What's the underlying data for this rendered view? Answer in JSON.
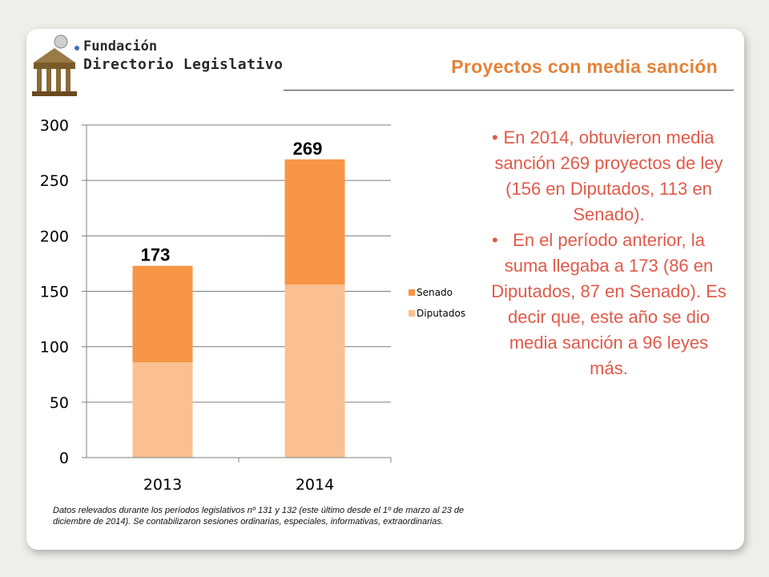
{
  "brand": {
    "line1": "Fundación",
    "line2": "Directorio Legislativo"
  },
  "slide": {
    "title": "Proyectos con media sanción"
  },
  "bullets": [
    "En 2014, obtuvieron media sanción 269 proyectos de ley (156 en Diputados, 113 en Senado).",
    "En el período anterior, la suma llegaba a 173 (86 en Diputados, 87 en Senado). Es decir que, este año se dio media sanción a 96 leyes más."
  ],
  "footnote": "Datos relevados durante los períodos legislativos nº  131 y 132 (este último desde el 1º de marzo al 23 de diciembre de 2014). Se contabilizaron sesiones ordinarias, especiales, informativas, extraordinarias.",
  "colors": {
    "title": "#e4833a",
    "bullet_text": "#e05a4a",
    "senado": "#f79646",
    "diputados": "#fac090"
  },
  "chart_data": {
    "type": "bar",
    "stacked": true,
    "categories": [
      "2013",
      "2014"
    ],
    "series": [
      {
        "name": "Diputados",
        "values": [
          86,
          156
        ],
        "color": "#fac090"
      },
      {
        "name": "Senado",
        "values": [
          87,
          113
        ],
        "color": "#f79646"
      }
    ],
    "totals": [
      "173",
      "269"
    ],
    "ylim": [
      0,
      300
    ],
    "yticks": [
      "0",
      "50",
      "100",
      "150",
      "200",
      "250",
      "300"
    ],
    "grid": true,
    "legend": "right",
    "legend_order": [
      "Senado",
      "Diputados"
    ],
    "title": "",
    "xlabel": "",
    "ylabel": ""
  }
}
